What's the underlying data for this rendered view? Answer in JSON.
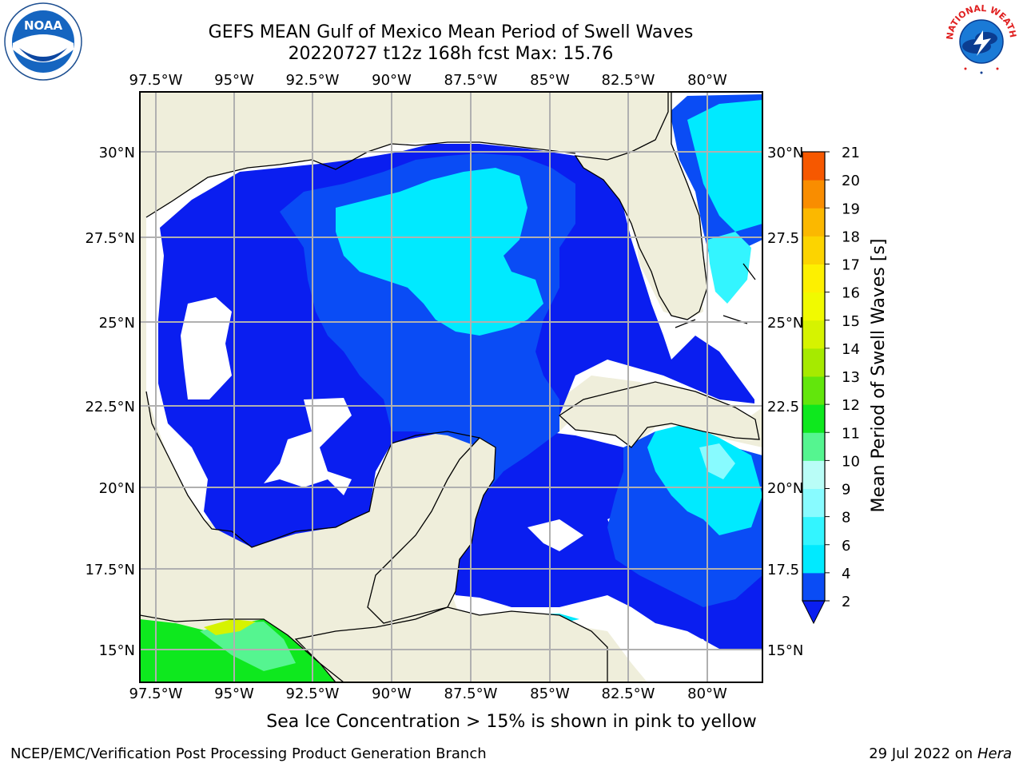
{
  "title_line1": "GEFS MEAN Gulf of Mexico Mean Period of Swell Waves",
  "title_line2": "20220727 t12z 168h fcst   Max: 15.76",
  "caption": "Sea Ice Concentration > 15% is shown in pink to yellow",
  "footer_left": "NCEP/EMC/Verification Post Processing Product Generation Branch",
  "footer_date": "29 Jul 2022 on",
  "footer_machine": "Hera",
  "logos": {
    "noaa_text": "NOAA",
    "nws_text": "NATIONAL WEATHER SERVICE"
  },
  "map": {
    "lon_labels": [
      "97.5°W",
      "95°W",
      "92.5°W",
      "90°W",
      "87.5°W",
      "85°W",
      "82.5°W",
      "80°W"
    ],
    "lat_labels": [
      "30°N",
      "27.5°N",
      "25°N",
      "22.5°N",
      "20°N",
      "17.5°N",
      "15°N"
    ],
    "lat_labels_right": [
      "30°N",
      "27.5",
      "25°N",
      "22.5",
      "20°N",
      "17.5",
      "15°N"
    ],
    "colors": {
      "land": "#efeedb",
      "ocean_white": "#ffffff",
      "grid": "#b0b0b0"
    }
  },
  "colorbar": {
    "label": "Mean Period of Swell Waves [s]",
    "ticks": [
      "2",
      "4",
      "6",
      "8",
      "9",
      "10",
      "11",
      "12",
      "13",
      "14",
      "15",
      "16",
      "17",
      "18",
      "19",
      "20",
      "21"
    ],
    "colors": [
      "#0a4cf5",
      "#00eaff",
      "#33f5ff",
      "#88fbff",
      "#b9fdf7",
      "#55f590",
      "#0ee81e",
      "#62e60c",
      "#a6ea00",
      "#d6f300",
      "#f1fa00",
      "#fdf000",
      "#fcd400",
      "#fbb800",
      "#f98d00",
      "#f65800",
      "#f42700",
      "#f70000"
    ],
    "under_color": "#0a1ef0"
  }
}
